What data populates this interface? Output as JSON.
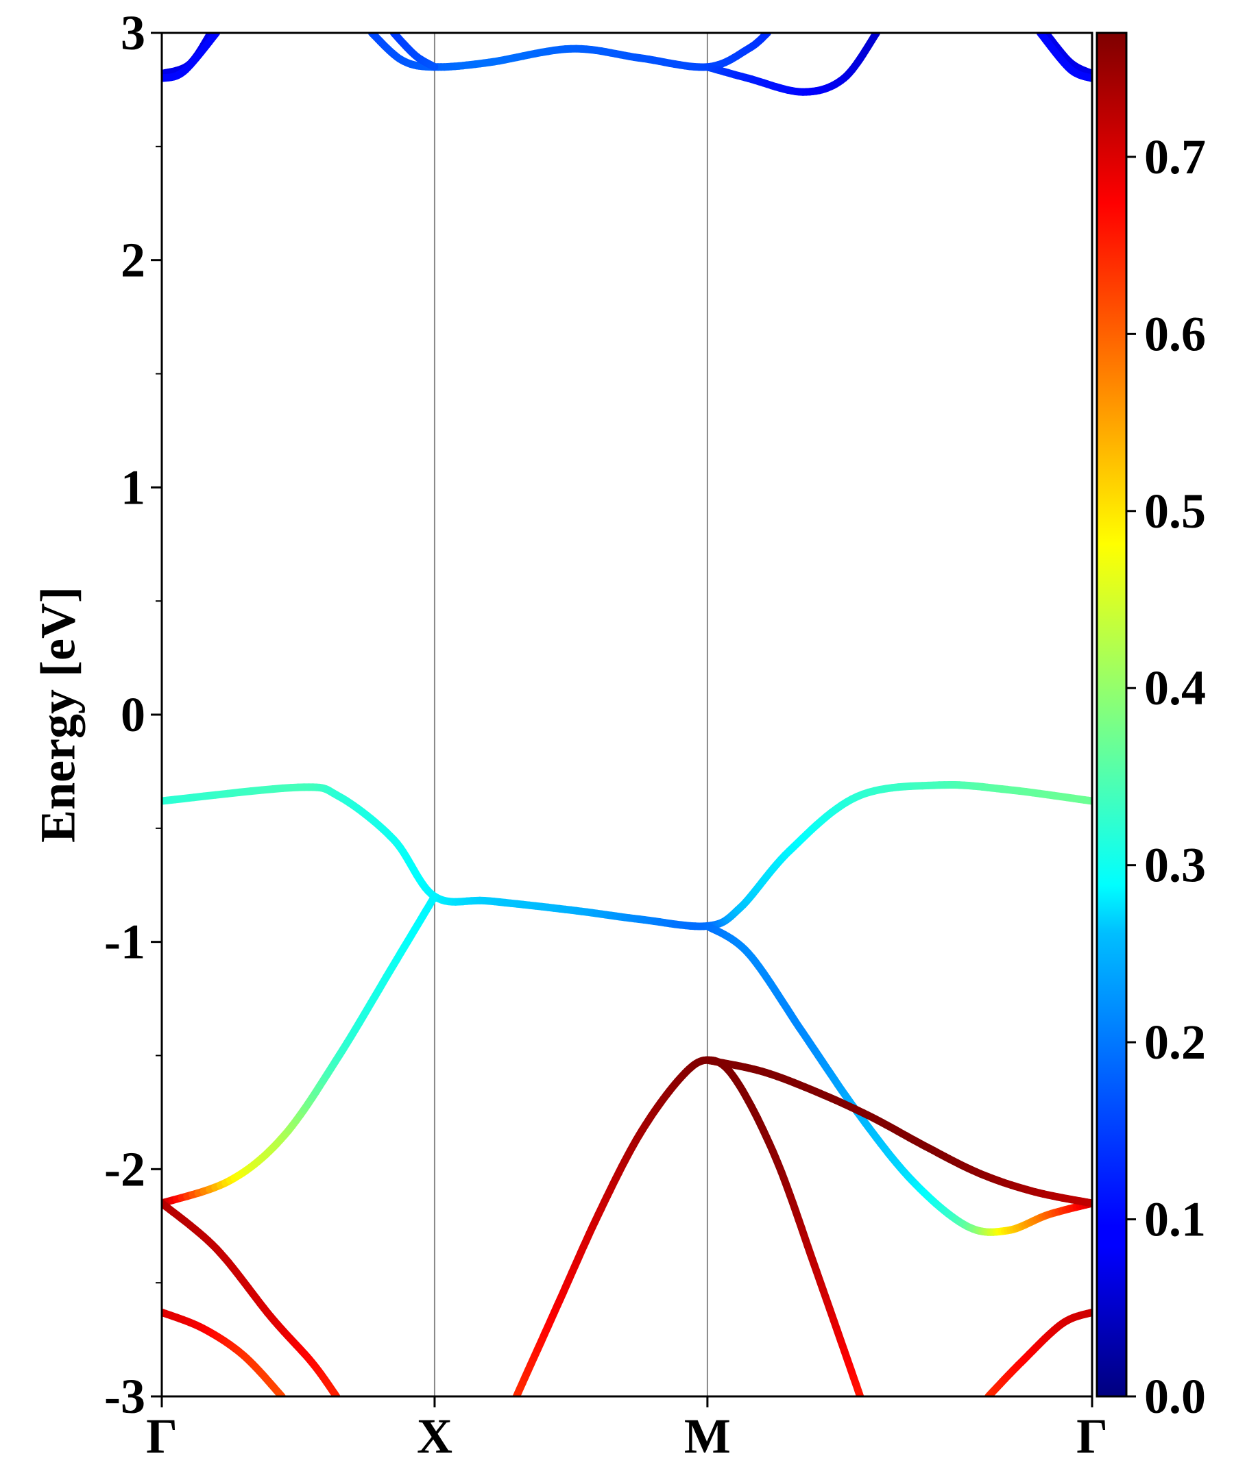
{
  "chart_data": {
    "type": "line",
    "title": "",
    "xlabel": "",
    "ylabel": "Energy [eV]",
    "ylim": [
      -3,
      3
    ],
    "x_range": [
      0,
      3.41
    ],
    "k_points": [
      {
        "label": "Γ",
        "x": 0
      },
      {
        "label": "X",
        "x": 1
      },
      {
        "label": "M",
        "x": 2
      },
      {
        "label": "Γ",
        "x": 3.41
      }
    ],
    "y_ticks": [
      -3,
      -2,
      -1,
      0,
      1,
      2,
      3
    ],
    "y_tick_labels": [
      "-3",
      "-2",
      "-1",
      "0",
      "1",
      "2",
      "3"
    ],
    "colorbar": {
      "colormap": "jet",
      "range": [
        0,
        0.77
      ],
      "ticks": [
        0.0,
        0.1,
        0.2,
        0.3,
        0.4,
        0.5,
        0.6,
        0.7
      ],
      "tick_labels": [
        "0.0",
        "0.1",
        "0.2",
        "0.3",
        "0.4",
        "0.5",
        "0.6",
        "0.7"
      ]
    },
    "series": [
      {
        "values": [
          [
            0,
            -0.38,
            0.32
          ],
          [
            0.5,
            -0.32,
            0.34
          ],
          [
            0.65,
            -0.36,
            0.32
          ],
          [
            0.85,
            -0.55,
            0.3
          ],
          [
            1,
            -0.8,
            0.28
          ],
          [
            1.2,
            -0.82,
            0.25
          ],
          [
            1.5,
            -0.86,
            0.23
          ],
          [
            1.75,
            -0.9,
            0.2
          ],
          [
            2,
            -0.93,
            0.18
          ],
          [
            2.12,
            -0.85,
            0.24
          ],
          [
            2.3,
            -0.6,
            0.28
          ],
          [
            2.55,
            -0.36,
            0.32
          ],
          [
            2.85,
            -0.31,
            0.34
          ],
          [
            3.1,
            -0.33,
            0.36
          ],
          [
            3.41,
            -0.38,
            0.37
          ]
        ]
      },
      {
        "values": [
          [
            0,
            -2.15,
            0.73
          ],
          [
            0.25,
            -2.05,
            0.5
          ],
          [
            0.45,
            -1.85,
            0.42
          ],
          [
            0.65,
            -1.5,
            0.33
          ],
          [
            0.85,
            -1.1,
            0.3
          ],
          [
            1,
            -0.8,
            0.28
          ]
        ]
      },
      {
        "values": [
          [
            2,
            -0.93,
            0.18
          ],
          [
            2.15,
            -1.05,
            0.2
          ],
          [
            2.35,
            -1.4,
            0.2
          ],
          [
            2.55,
            -1.75,
            0.23
          ],
          [
            2.75,
            -2.05,
            0.27
          ],
          [
            2.95,
            -2.25,
            0.36
          ],
          [
            3.1,
            -2.27,
            0.5
          ],
          [
            3.25,
            -2.2,
            0.6
          ],
          [
            3.41,
            -2.15,
            0.7
          ]
        ]
      },
      {
        "values": [
          [
            2,
            -1.52,
            0.77
          ],
          [
            2.2,
            -1.57,
            0.77
          ],
          [
            2.4,
            -1.66,
            0.77
          ],
          [
            2.6,
            -1.77,
            0.77
          ],
          [
            2.8,
            -1.9,
            0.77
          ],
          [
            3.0,
            -2.02,
            0.76
          ],
          [
            3.2,
            -2.1,
            0.74
          ],
          [
            3.41,
            -2.15,
            0.72
          ]
        ]
      },
      {
        "values": [
          [
            0,
            -2.15,
            0.73
          ],
          [
            0.2,
            -2.35,
            0.72
          ],
          [
            0.4,
            -2.65,
            0.7
          ],
          [
            0.55,
            -2.85,
            0.67
          ],
          [
            0.64,
            -3.0,
            0.65
          ]
        ]
      },
      {
        "values": [
          [
            0,
            -2.63,
            0.7
          ],
          [
            0.15,
            -2.7,
            0.68
          ],
          [
            0.3,
            -2.82,
            0.64
          ],
          [
            0.44,
            -3.0,
            0.62
          ]
        ]
      },
      {
        "values": [
          [
            1.3,
            -3.0,
            0.64
          ],
          [
            1.45,
            -2.6,
            0.68
          ],
          [
            1.6,
            -2.2,
            0.71
          ],
          [
            1.75,
            -1.85,
            0.74
          ],
          [
            1.9,
            -1.6,
            0.76
          ],
          [
            2,
            -1.52,
            0.77
          ],
          [
            2.1,
            -1.6,
            0.77
          ],
          [
            2.25,
            -1.95,
            0.76
          ],
          [
            2.4,
            -2.45,
            0.72
          ],
          [
            2.56,
            -3.0,
            0.66
          ]
        ]
      },
      {
        "values": [
          [
            3.03,
            -3.0,
            0.64
          ],
          [
            3.15,
            -2.85,
            0.67
          ],
          [
            3.3,
            -2.68,
            0.7
          ],
          [
            3.41,
            -2.63,
            0.71
          ]
        ]
      },
      {
        "values": [
          [
            0.77,
            3.0,
            0.15
          ],
          [
            0.88,
            2.88,
            0.16
          ],
          [
            1,
            2.85,
            0.17
          ],
          [
            1.2,
            2.87,
            0.18
          ],
          [
            1.5,
            2.93,
            0.17
          ],
          [
            1.75,
            2.89,
            0.16
          ],
          [
            2,
            2.85,
            0.15
          ],
          [
            2.15,
            2.93,
            0.14
          ],
          [
            2.22,
            3.0,
            0.13
          ]
        ]
      },
      {
        "values": [
          [
            0.85,
            3.0,
            0.14
          ],
          [
            0.93,
            2.9,
            0.15
          ],
          [
            1,
            2.85,
            0.16
          ]
        ]
      },
      {
        "values": [
          [
            2,
            2.85,
            0.15
          ],
          [
            2.15,
            2.8,
            0.12
          ],
          [
            2.35,
            2.74,
            0.1
          ],
          [
            2.5,
            2.8,
            0.08
          ],
          [
            2.62,
            3.0,
            0.06
          ]
        ]
      },
      {
        "values": [
          [
            0,
            2.82,
            0.08
          ],
          [
            0.1,
            2.86,
            0.08
          ],
          [
            0.18,
            3.0,
            0.08
          ]
        ]
      },
      {
        "values": [
          [
            0,
            2.8,
            0.1
          ],
          [
            0.08,
            2.83,
            0.1
          ],
          [
            0.2,
            3.0,
            0.1
          ]
        ]
      },
      {
        "values": [
          [
            3.24,
            3.0,
            0.08
          ],
          [
            3.33,
            2.87,
            0.08
          ],
          [
            3.41,
            2.82,
            0.08
          ]
        ]
      },
      {
        "values": [
          [
            3.22,
            3.0,
            0.1
          ],
          [
            3.33,
            2.84,
            0.1
          ],
          [
            3.41,
            2.8,
            0.1
          ]
        ]
      }
    ]
  }
}
